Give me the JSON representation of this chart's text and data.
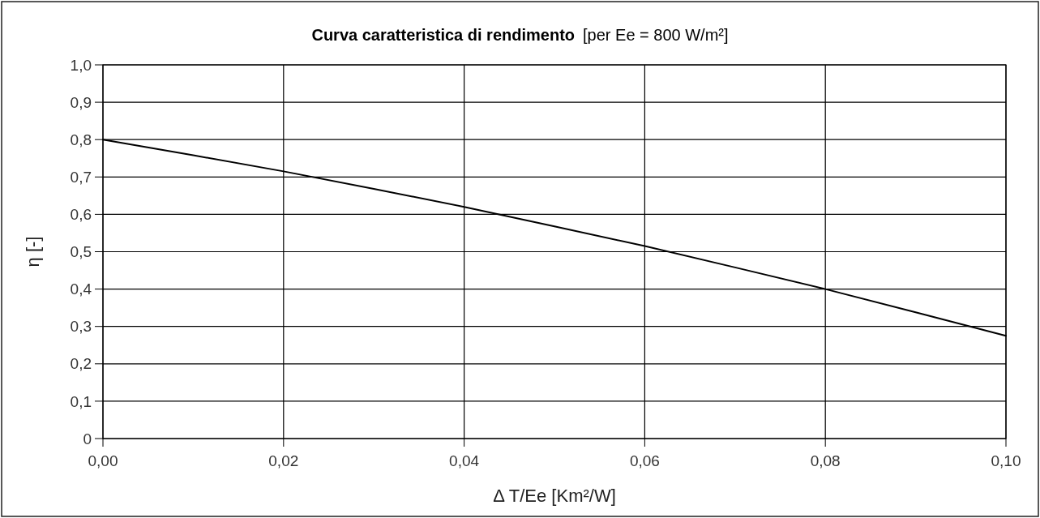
{
  "chart_data": {
    "type": "line",
    "title": "Curva caratteristica di rendimento",
    "subtitle": "[per Ee = 800 W/m²]",
    "xlabel": "Δ T/Ee [Km²/W]",
    "ylabel": "η [-]",
    "series": [
      {
        "color": "#000000",
        "x": [
          0,
          0.01,
          0.02,
          0.03,
          0.04,
          0.05,
          0.06,
          0.07,
          0.08,
          0.09,
          0.1
        ],
        "values": [
          0.8,
          0.758,
          0.715,
          0.668,
          0.62,
          0.568,
          0.515,
          0.458,
          0.4,
          0.338,
          0.275
        ]
      }
    ],
    "xlim": [
      0,
      0.1
    ],
    "ylim": [
      0,
      1
    ],
    "xticks": [
      {
        "value": 0,
        "label": "0,00"
      },
      {
        "value": 0.02,
        "label": "0,02"
      },
      {
        "value": 0.04,
        "label": "0,04"
      },
      {
        "value": 0.06,
        "label": "0,06"
      },
      {
        "value": 0.08,
        "label": "0,08"
      },
      {
        "value": 0.1,
        "label": "0,10"
      }
    ],
    "yticks": [
      0,
      {
        "value": 0.1,
        "label": "0,1"
      },
      {
        "value": 0.2,
        "label": "0,2"
      },
      {
        "value": 0.3,
        "label": "0,3"
      },
      {
        "value": 0.4,
        "label": "0,4"
      },
      {
        "value": 0.5,
        "label": "0,5"
      },
      {
        "value": 0.6,
        "label": "0,6"
      },
      {
        "value": 0.7,
        "label": "0,7"
      },
      {
        "value": 0.8,
        "label": "0,8"
      },
      {
        "value": 0.9,
        "label": "0,9"
      },
      {
        "value": 1,
        "label": "1,0"
      }
    ],
    "grid": true,
    "marker": "none",
    "line_style": "solid"
  }
}
